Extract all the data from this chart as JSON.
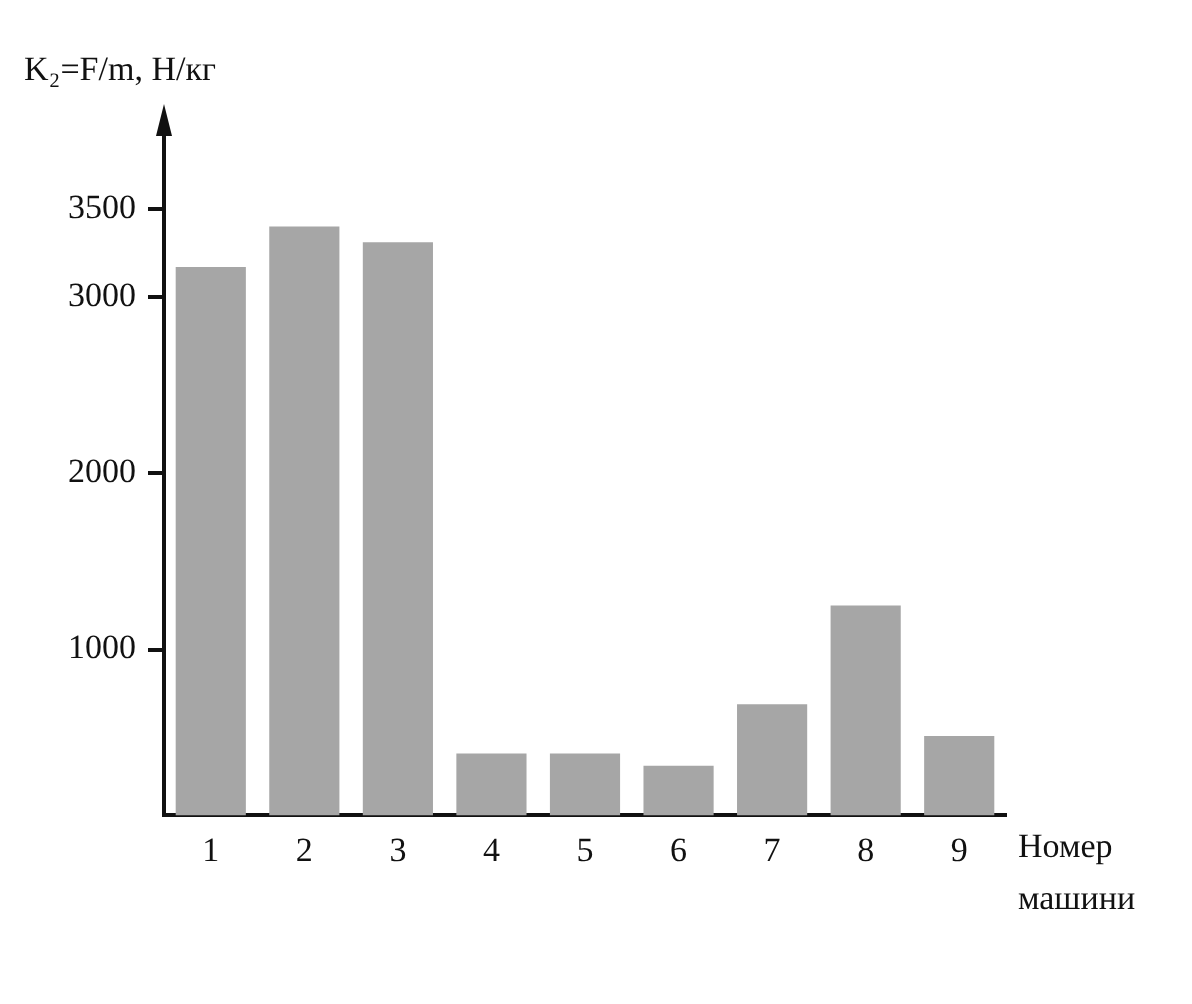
{
  "chart_data": {
    "type": "bar",
    "ylabel": "K₂=F/m, Н/кг",
    "xlabel": "Номер машини",
    "categories": [
      "1",
      "2",
      "3",
      "4",
      "5",
      "6",
      "7",
      "8",
      "9"
    ],
    "values": [
      3170,
      3400,
      3310,
      410,
      410,
      340,
      690,
      1250,
      510
    ],
    "color": "#a6a6a6",
    "ylim": [
      60,
      3800
    ],
    "yticks": [
      1000,
      2000,
      3000,
      3500
    ],
    "grid": false,
    "legend": false
  }
}
